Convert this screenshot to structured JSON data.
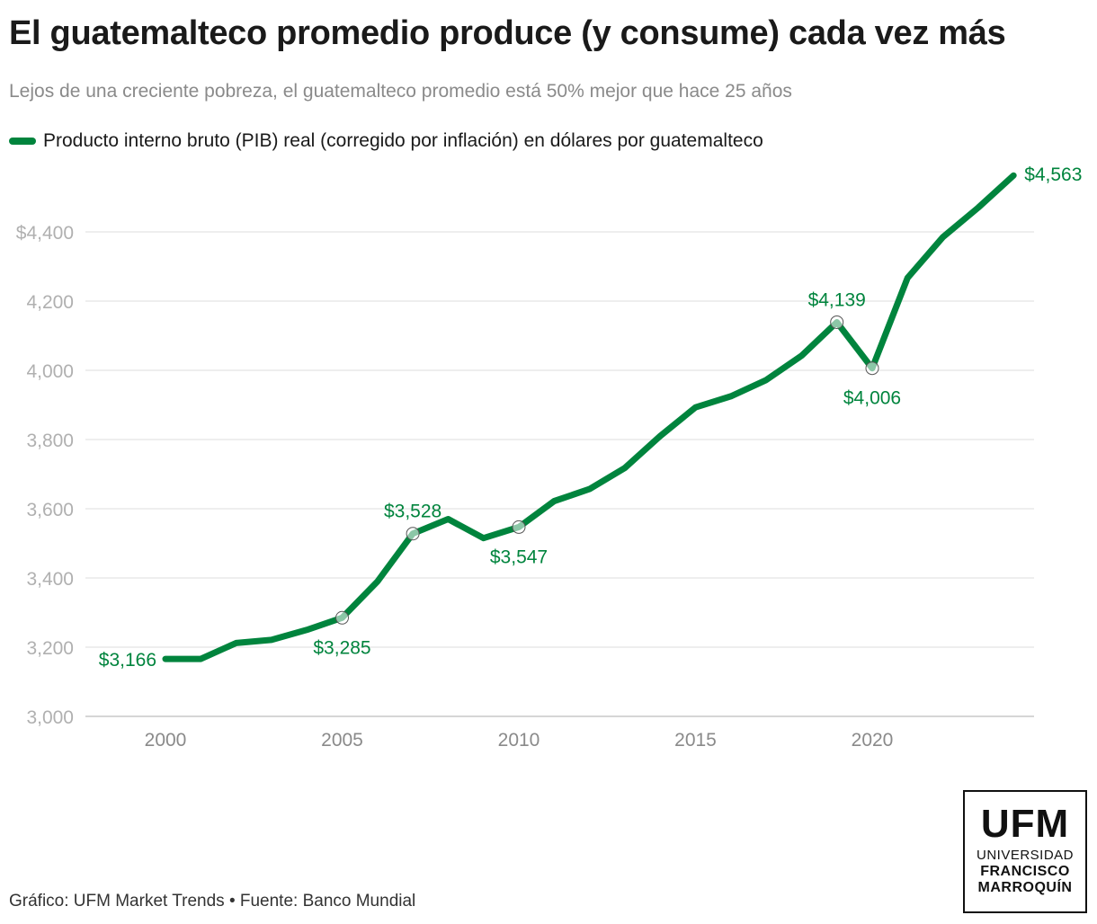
{
  "header": {
    "title": "El guatemalteco promedio produce (y consume) cada vez más",
    "subtitle": "Lejos de una creciente pobreza, el guatemalteco promedio está 50% mejor que hace 25 años"
  },
  "colors": {
    "line": "#00843d",
    "grid": "#e3e3e3",
    "axis": "#c8c8c8"
  },
  "chart_data": {
    "type": "line",
    "title": "El guatemalteco promedio produce (y consume) cada vez más",
    "subtitle": "Lejos de una creciente pobreza, el guatemalteco promedio está 50% mejor que hace 25 años",
    "xlabel": "",
    "ylabel": "",
    "legend_position": "top-left",
    "grid": true,
    "xlim": [
      1999,
      2024
    ],
    "ylim": [
      3000,
      4563
    ],
    "y_ticks": [
      3000,
      3200,
      3400,
      3600,
      3800,
      4000,
      4200,
      4400
    ],
    "y_tick_labels": [
      "3,000",
      "3,200",
      "3,400",
      "3,600",
      "3,800",
      "4,000",
      "4,200",
      "$4,400"
    ],
    "x_ticks": [
      2000,
      2005,
      2010,
      2015,
      2020
    ],
    "x_tick_labels": [
      "2000",
      "2005",
      "2010",
      "2015",
      "2020"
    ],
    "series": [
      {
        "name": "Producto interno bruto (PIB) real (corregido por inflación) en dólares por guatemalteco",
        "x": [
          2000,
          2001,
          2002,
          2003,
          2004,
          2005,
          2006,
          2007,
          2008,
          2009,
          2010,
          2011,
          2012,
          2013,
          2014,
          2015,
          2016,
          2017,
          2018,
          2019,
          2020,
          2021,
          2022,
          2023,
          2024
        ],
        "y": [
          3166,
          3166,
          3212,
          3221,
          3250,
          3285,
          3390,
          3528,
          3570,
          3515,
          3547,
          3622,
          3657,
          3718,
          3810,
          3893,
          3925,
          3972,
          4042,
          4139,
          4006,
          4267,
          4385,
          4470,
          4563
        ]
      }
    ],
    "annotations": [
      {
        "x": 2000,
        "y": 3166,
        "label": "$3,166",
        "marker": false,
        "position": "left"
      },
      {
        "x": 2005,
        "y": 3285,
        "label": "$3,285",
        "marker": true,
        "position": "below"
      },
      {
        "x": 2007,
        "y": 3528,
        "label": "$3,528",
        "marker": true,
        "position": "above"
      },
      {
        "x": 2010,
        "y": 3547,
        "label": "$3,547",
        "marker": true,
        "position": "below"
      },
      {
        "x": 2019,
        "y": 4139,
        "label": "$4,139",
        "marker": true,
        "position": "above"
      },
      {
        "x": 2020,
        "y": 4006,
        "label": "$4,006",
        "marker": true,
        "position": "below"
      },
      {
        "x": 2024,
        "y": 4563,
        "label": "$4,563",
        "marker": false,
        "position": "right"
      }
    ]
  },
  "footer": {
    "credit": "Gráfico: UFM Market Trends • Fuente: Banco Mundial"
  },
  "logo": {
    "main": "UFM",
    "line1": "UNIVERSIDAD",
    "line2": "FRANCISCO",
    "line3": "MARROQUÍN"
  }
}
